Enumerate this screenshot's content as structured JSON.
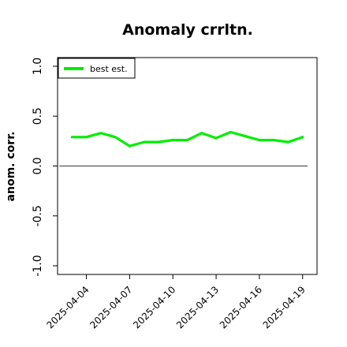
{
  "chart_data": {
    "type": "line",
    "title": "Anomaly crrltn.",
    "xlabel": "",
    "ylabel": "anom. corr.",
    "ylim": [
      -1.0,
      1.0
    ],
    "yticks": [
      "-1.0",
      "-0.5",
      "0.0",
      "0.5",
      "1.0"
    ],
    "xlim": [
      "2025-04-02",
      "2025-04-20"
    ],
    "xticks": [
      "2025-04-04",
      "2025-04-07",
      "2025-04-10",
      "2025-04-13",
      "2025-04-16",
      "2025-04-19"
    ],
    "x": [
      "2025-04-03",
      "2025-04-04",
      "2025-04-05",
      "2025-04-06",
      "2025-04-07",
      "2025-04-08",
      "2025-04-09",
      "2025-04-10",
      "2025-04-11",
      "2025-04-12",
      "2025-04-13",
      "2025-04-14",
      "2025-04-15",
      "2025-04-16",
      "2025-04-17",
      "2025-04-18",
      "2025-04-19"
    ],
    "series": [
      {
        "name": "best est.",
        "color": "#00ee00",
        "values": [
          0.29,
          0.29,
          0.33,
          0.29,
          0.2,
          0.24,
          0.24,
          0.26,
          0.26,
          0.33,
          0.28,
          0.34,
          0.3,
          0.26,
          0.26,
          0.24,
          0.29
        ]
      }
    ],
    "reference_line": {
      "y": 0.0,
      "color": "#555555"
    },
    "legend_position": "top-left",
    "grid": false
  }
}
